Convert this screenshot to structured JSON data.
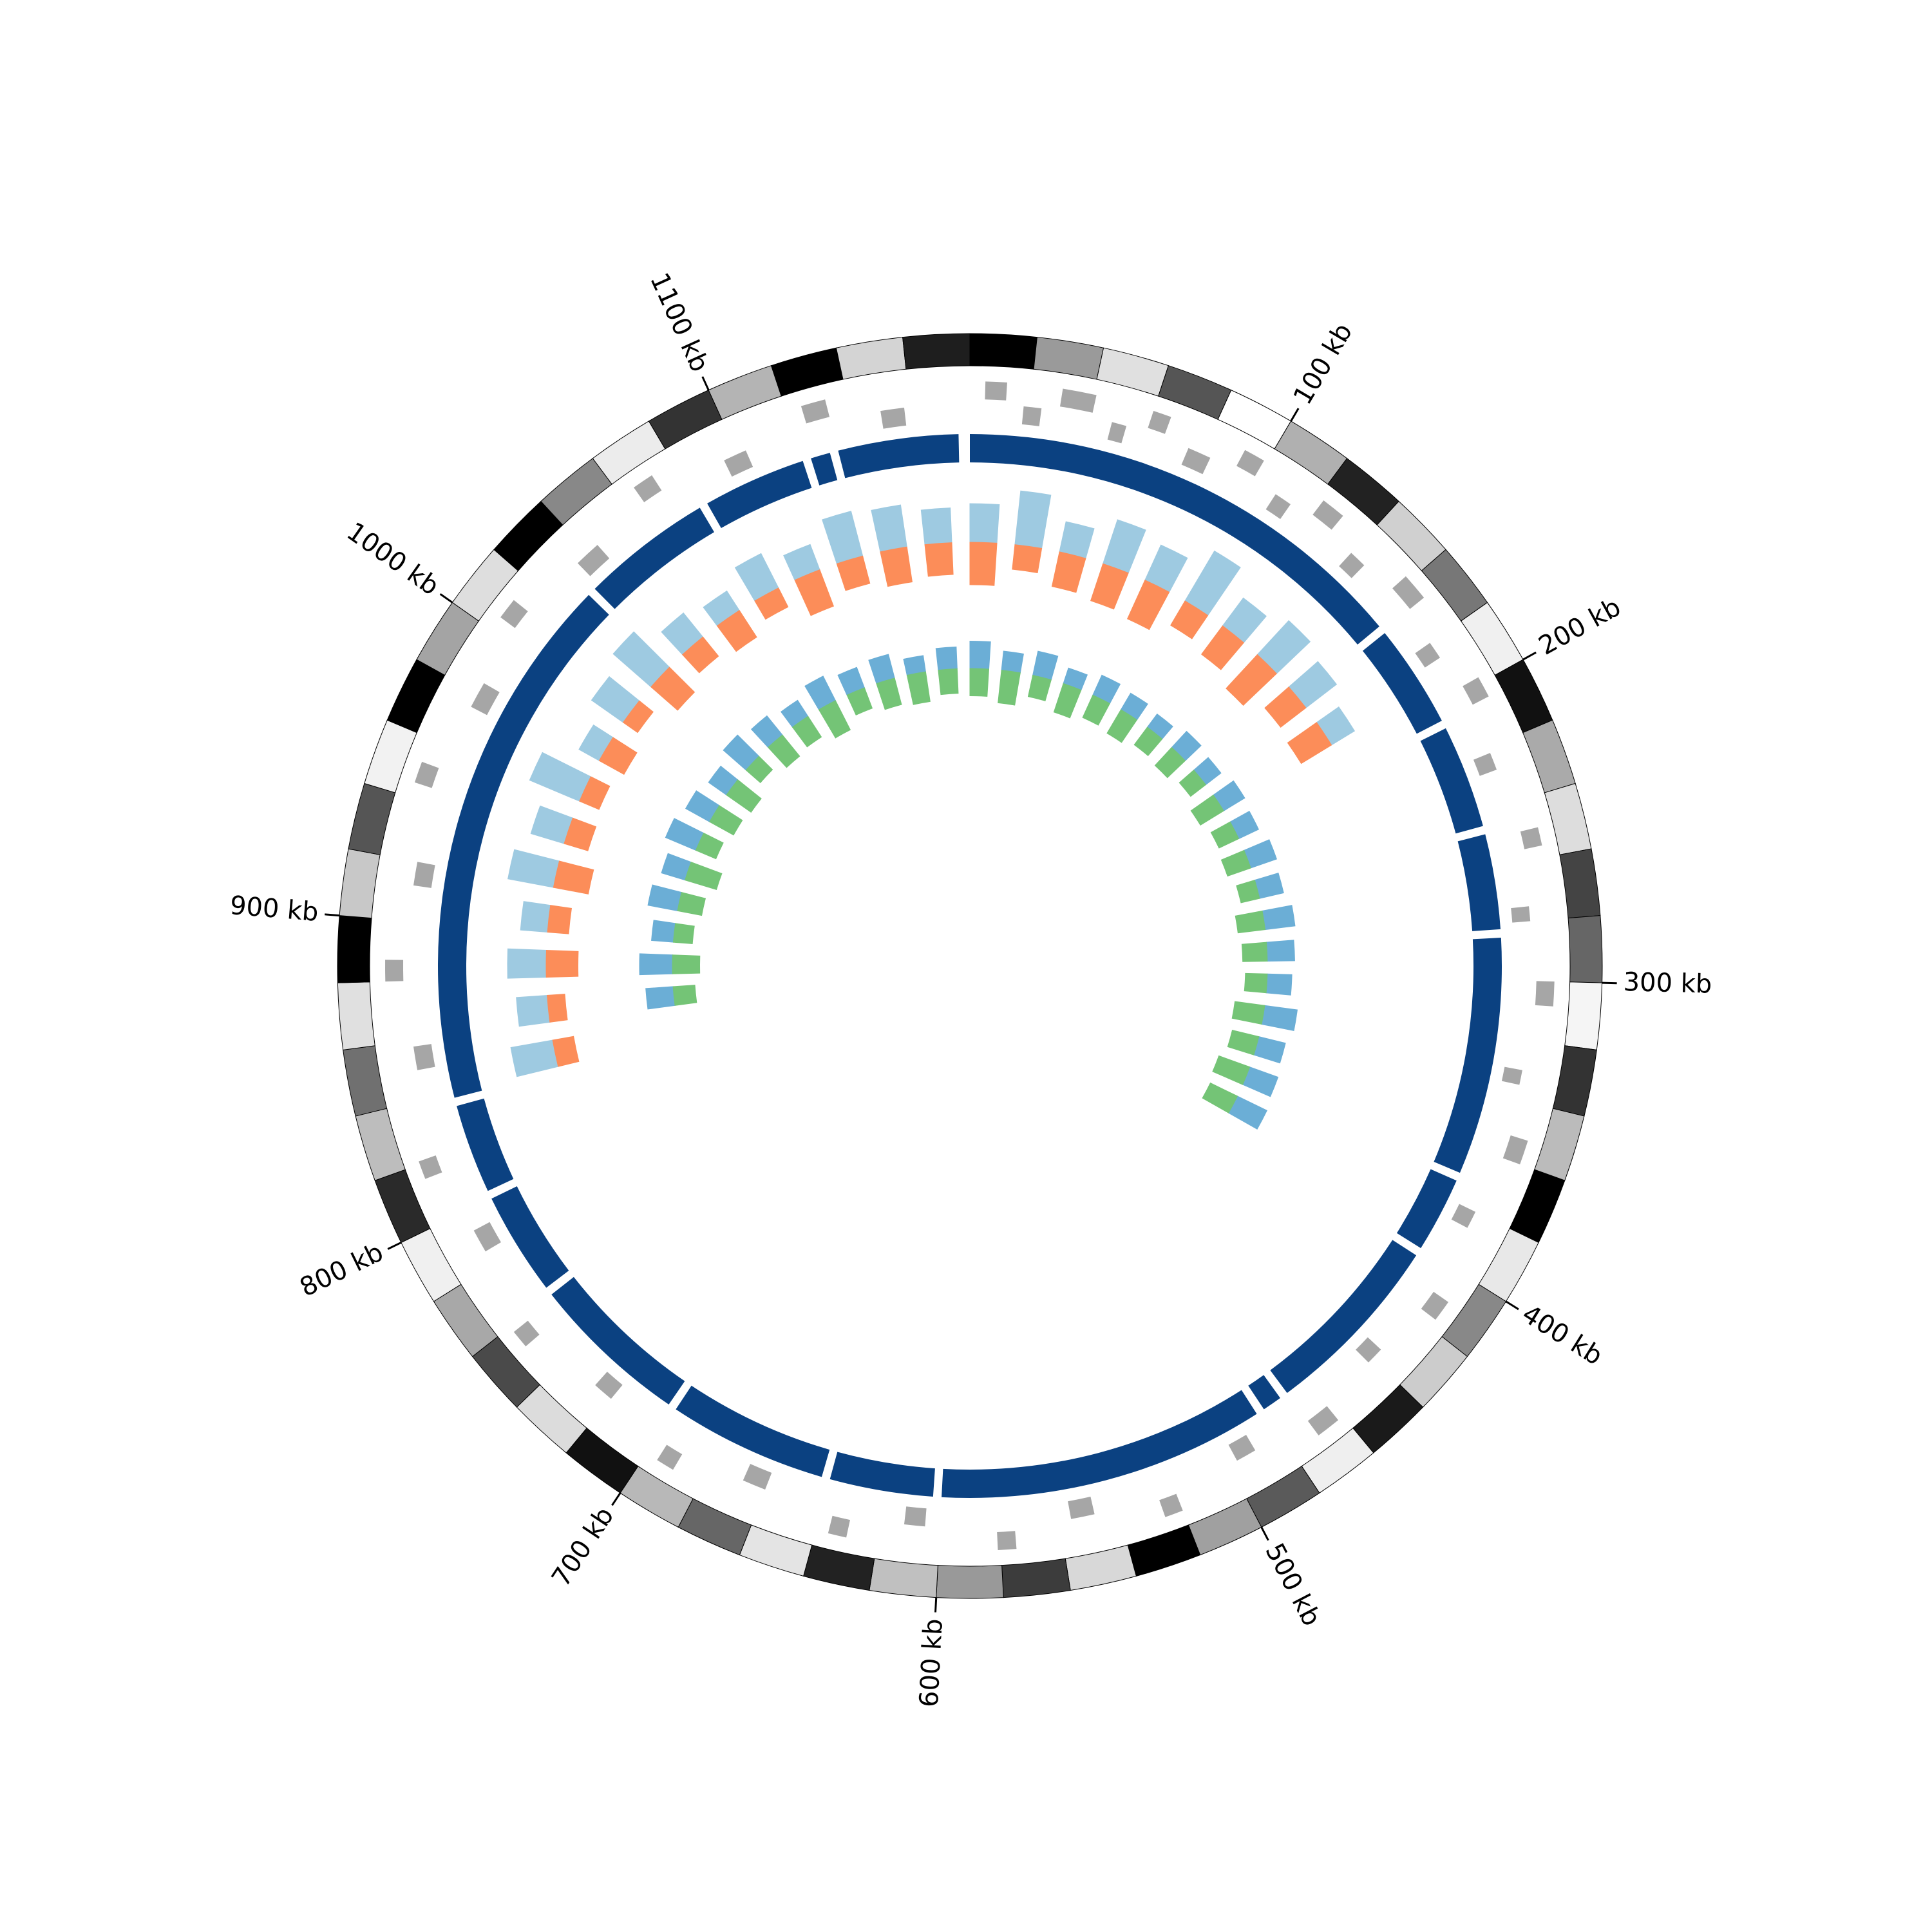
{
  "chart_data": {
    "type": "circos",
    "xlim": [
      0,
      1180
    ],
    "xticks": [
      {
        "value": 100,
        "label": "100 kb"
      },
      {
        "value": 200,
        "label": "200 kb"
      },
      {
        "value": 300,
        "label": "300 kb"
      },
      {
        "value": 400,
        "label": "400 kb"
      },
      {
        "value": 500,
        "label": "500 kb"
      },
      {
        "value": 600,
        "label": "600 kb"
      },
      {
        "value": 700,
        "label": "700 kb"
      },
      {
        "value": 800,
        "label": "800 kb"
      },
      {
        "value": 900,
        "label": "900 kb"
      },
      {
        "value": 1000,
        "label": "1000 kb"
      },
      {
        "value": 1100,
        "label": "1100 kb"
      }
    ],
    "band_colors": [
      "#000000",
      "#9a9a9a",
      "#e0e0e0",
      "#555555",
      "#ffffff",
      "#b0b0b0",
      "#222222",
      "#d0d0d0",
      "#777777",
      "#f0f0f0",
      "#111111",
      "#aaaaaa",
      "#dddddd",
      "#444444",
      "#666666",
      "#f5f5f5",
      "#333333",
      "#bbbbbb",
      "#000000",
      "#e8e8e8",
      "#888888",
      "#cccccc",
      "#1a1a1a",
      "#efefef",
      "#5a5a5a",
      "#a0a0a0",
      "#000000",
      "#d8d8d8",
      "#3c3c3c",
      "#999999",
      "#c0c0c0",
      "#222222",
      "#e4e4e4",
      "#666666",
      "#b8b8b8",
      "#111111",
      "#dcdcdc",
      "#4a4a4a",
      "#a8a8a8",
      "#f0f0f0",
      "#2a2a2a",
      "#bdbdbd",
      "#707070",
      "#e0e0e0",
      "#000000",
      "#c8c8c8",
      "#555555",
      "#f2f2f2",
      "#000000",
      "#a4a4a4",
      "#dedede",
      "#000000",
      "#888888",
      "#ececec",
      "#333333",
      "#b4b4b4",
      "#000000",
      "#d4d4d4",
      "#1e1e1e"
    ],
    "genes": [
      {
        "start": 5,
        "end": 12,
        "strand": 1
      },
      {
        "start": 18,
        "end": 24,
        "strand": -1
      },
      {
        "start": 30,
        "end": 41,
        "strand": 1
      },
      {
        "start": 48,
        "end": 53,
        "strand": -1
      },
      {
        "start": 60,
        "end": 66,
        "strand": 1
      },
      {
        "start": 75,
        "end": 83,
        "strand": -1
      },
      {
        "start": 92,
        "end": 99,
        "strand": 1
      },
      {
        "start": 108,
        "end": 114,
        "strand": -1
      },
      {
        "start": 122,
        "end": 130,
        "strand": 1
      },
      {
        "start": 140,
        "end": 146,
        "strand": -1
      },
      {
        "start": 158,
        "end": 167,
        "strand": 1
      },
      {
        "start": 180,
        "end": 186,
        "strand": -1
      },
      {
        "start": 198,
        "end": 205,
        "strand": 1
      },
      {
        "start": 222,
        "end": 228,
        "strand": -1
      },
      {
        "start": 250,
        "end": 256,
        "strand": 1
      },
      {
        "start": 275,
        "end": 280,
        "strand": -1
      },
      {
        "start": 300,
        "end": 308,
        "strand": 1
      },
      {
        "start": 330,
        "end": 335,
        "strand": -1
      },
      {
        "start": 352,
        "end": 360,
        "strand": 1
      },
      {
        "start": 380,
        "end": 386,
        "strand": -1
      },
      {
        "start": 410,
        "end": 417,
        "strand": 1
      },
      {
        "start": 436,
        "end": 442,
        "strand": -1
      },
      {
        "start": 462,
        "end": 470,
        "strand": 1
      },
      {
        "start": 490,
        "end": 497,
        "strand": -1
      },
      {
        "start": 520,
        "end": 526,
        "strand": 1
      },
      {
        "start": 548,
        "end": 556,
        "strand": -1
      },
      {
        "start": 575,
        "end": 581,
        "strand": 1
      },
      {
        "start": 605,
        "end": 612,
        "strand": -1
      },
      {
        "start": 630,
        "end": 636,
        "strand": 1
      },
      {
        "start": 660,
        "end": 668,
        "strand": -1
      },
      {
        "start": 690,
        "end": 696,
        "strand": 1
      },
      {
        "start": 720,
        "end": 727,
        "strand": -1
      },
      {
        "start": 752,
        "end": 758,
        "strand": 1
      },
      {
        "start": 785,
        "end": 793,
        "strand": -1
      },
      {
        "start": 815,
        "end": 821,
        "strand": 1
      },
      {
        "start": 850,
        "end": 858,
        "strand": -1
      },
      {
        "start": 880,
        "end": 887,
        "strand": 1
      },
      {
        "start": 912,
        "end": 920,
        "strand": -1
      },
      {
        "start": 945,
        "end": 952,
        "strand": 1
      },
      {
        "start": 975,
        "end": 984,
        "strand": -1
      },
      {
        "start": 1005,
        "end": 1012,
        "strand": 1
      },
      {
        "start": 1035,
        "end": 1044,
        "strand": -1
      },
      {
        "start": 1065,
        "end": 1072,
        "strand": 1
      },
      {
        "start": 1095,
        "end": 1103,
        "strand": -1
      },
      {
        "start": 1125,
        "end": 1133,
        "strand": 1
      },
      {
        "start": 1150,
        "end": 1158,
        "strand": -1
      }
    ],
    "segments_color": "#0b4181",
    "segments": [
      [
        0,
        165
      ],
      [
        168,
        205
      ],
      [
        208,
        245
      ],
      [
        248,
        282
      ],
      [
        285,
        370
      ],
      [
        373,
        400
      ],
      [
        403,
        470
      ],
      [
        473,
        480
      ],
      [
        483,
        600
      ],
      [
        603,
        640
      ],
      [
        643,
        700
      ],
      [
        703,
        760
      ],
      [
        763,
        800
      ],
      [
        803,
        835
      ],
      [
        838,
        1030
      ],
      [
        1033,
        1080
      ],
      [
        1083,
        1120
      ],
      [
        1123,
        1130
      ],
      [
        1133,
        1176
      ]
    ],
    "series": [
      {
        "color": "#9ecae1",
        "direction": "out",
        "ylim": [
          0,
          1
        ],
        "x": [
          840,
          860,
          880,
          900,
          920,
          940,
          960,
          980,
          1000,
          1020,
          1040,
          1060,
          1080,
          1100,
          1120,
          1140,
          1160,
          0,
          20,
          40,
          60,
          80,
          100,
          120,
          140,
          160,
          180
        ],
        "values": [
          0.55,
          0.4,
          0.5,
          0.35,
          0.6,
          0.45,
          0.7,
          0.3,
          0.5,
          0.65,
          0.4,
          0.3,
          0.5,
          0.35,
          0.6,
          0.55,
          0.45,
          0.5,
          0.7,
          0.4,
          0.6,
          0.5,
          0.75,
          0.45,
          0.6,
          0.5,
          0.35
        ]
      },
      {
        "color": "#fc8d59",
        "direction": "in",
        "ylim": [
          0,
          1
        ],
        "x": [
          840,
          860,
          880,
          900,
          920,
          940,
          960,
          980,
          1000,
          1020,
          1040,
          1060,
          1080,
          1100,
          1120,
          1140,
          1160,
          0,
          20,
          40,
          60,
          80,
          100,
          120,
          140,
          160,
          180
        ],
        "values": [
          0.3,
          0.25,
          0.45,
          0.3,
          0.5,
          0.35,
          0.3,
          0.4,
          0.25,
          0.5,
          0.35,
          0.45,
          0.3,
          0.55,
          0.4,
          0.5,
          0.45,
          0.6,
          0.35,
          0.5,
          0.55,
          0.6,
          0.4,
          0.5,
          0.65,
          0.45,
          0.5
        ]
      },
      {
        "color": "#6baed6",
        "direction": "out",
        "ylim": [
          0,
          1
        ],
        "x": [
          860,
          880,
          900,
          920,
          940,
          960,
          980,
          1000,
          1020,
          1040,
          1060,
          1080,
          1100,
          1120,
          1140,
          1160,
          0,
          20,
          40,
          60,
          80,
          100,
          120,
          140,
          160,
          180,
          200,
          220,
          240,
          260,
          280,
          300,
          320,
          340,
          360,
          380
        ],
        "values": [
          0.5,
          0.6,
          0.4,
          0.55,
          0.45,
          0.6,
          0.5,
          0.4,
          0.55,
          0.45,
          0.35,
          0.5,
          0.4,
          0.45,
          0.3,
          0.4,
          0.5,
          0.35,
          0.45,
          0.3,
          0.4,
          0.35,
          0.3,
          0.4,
          0.35,
          0.45,
          0.4,
          0.5,
          0.45,
          0.55,
          0.5,
          0.45,
          0.6,
          0.5,
          0.55,
          0.6
        ]
      },
      {
        "color": "#74c476",
        "direction": "in",
        "ylim": [
          0,
          1
        ],
        "x": [
          860,
          880,
          900,
          920,
          940,
          960,
          980,
          1000,
          1020,
          1040,
          1060,
          1080,
          1100,
          1120,
          1140,
          1160,
          0,
          20,
          40,
          60,
          80,
          100,
          120,
          140,
          160,
          180,
          200,
          220,
          240,
          260,
          280,
          300,
          320,
          340,
          360,
          380
        ],
        "values": [
          0.4,
          0.5,
          0.35,
          0.45,
          0.6,
          0.4,
          0.5,
          0.55,
          0.35,
          0.5,
          0.45,
          0.6,
          0.4,
          0.5,
          0.55,
          0.45,
          0.5,
          0.6,
          0.4,
          0.55,
          0.45,
          0.5,
          0.4,
          0.45,
          0.35,
          0.5,
          0.4,
          0.45,
          0.35,
          0.5,
          0.45,
          0.4,
          0.55,
          0.5,
          0.6,
          0.55
        ]
      }
    ]
  }
}
